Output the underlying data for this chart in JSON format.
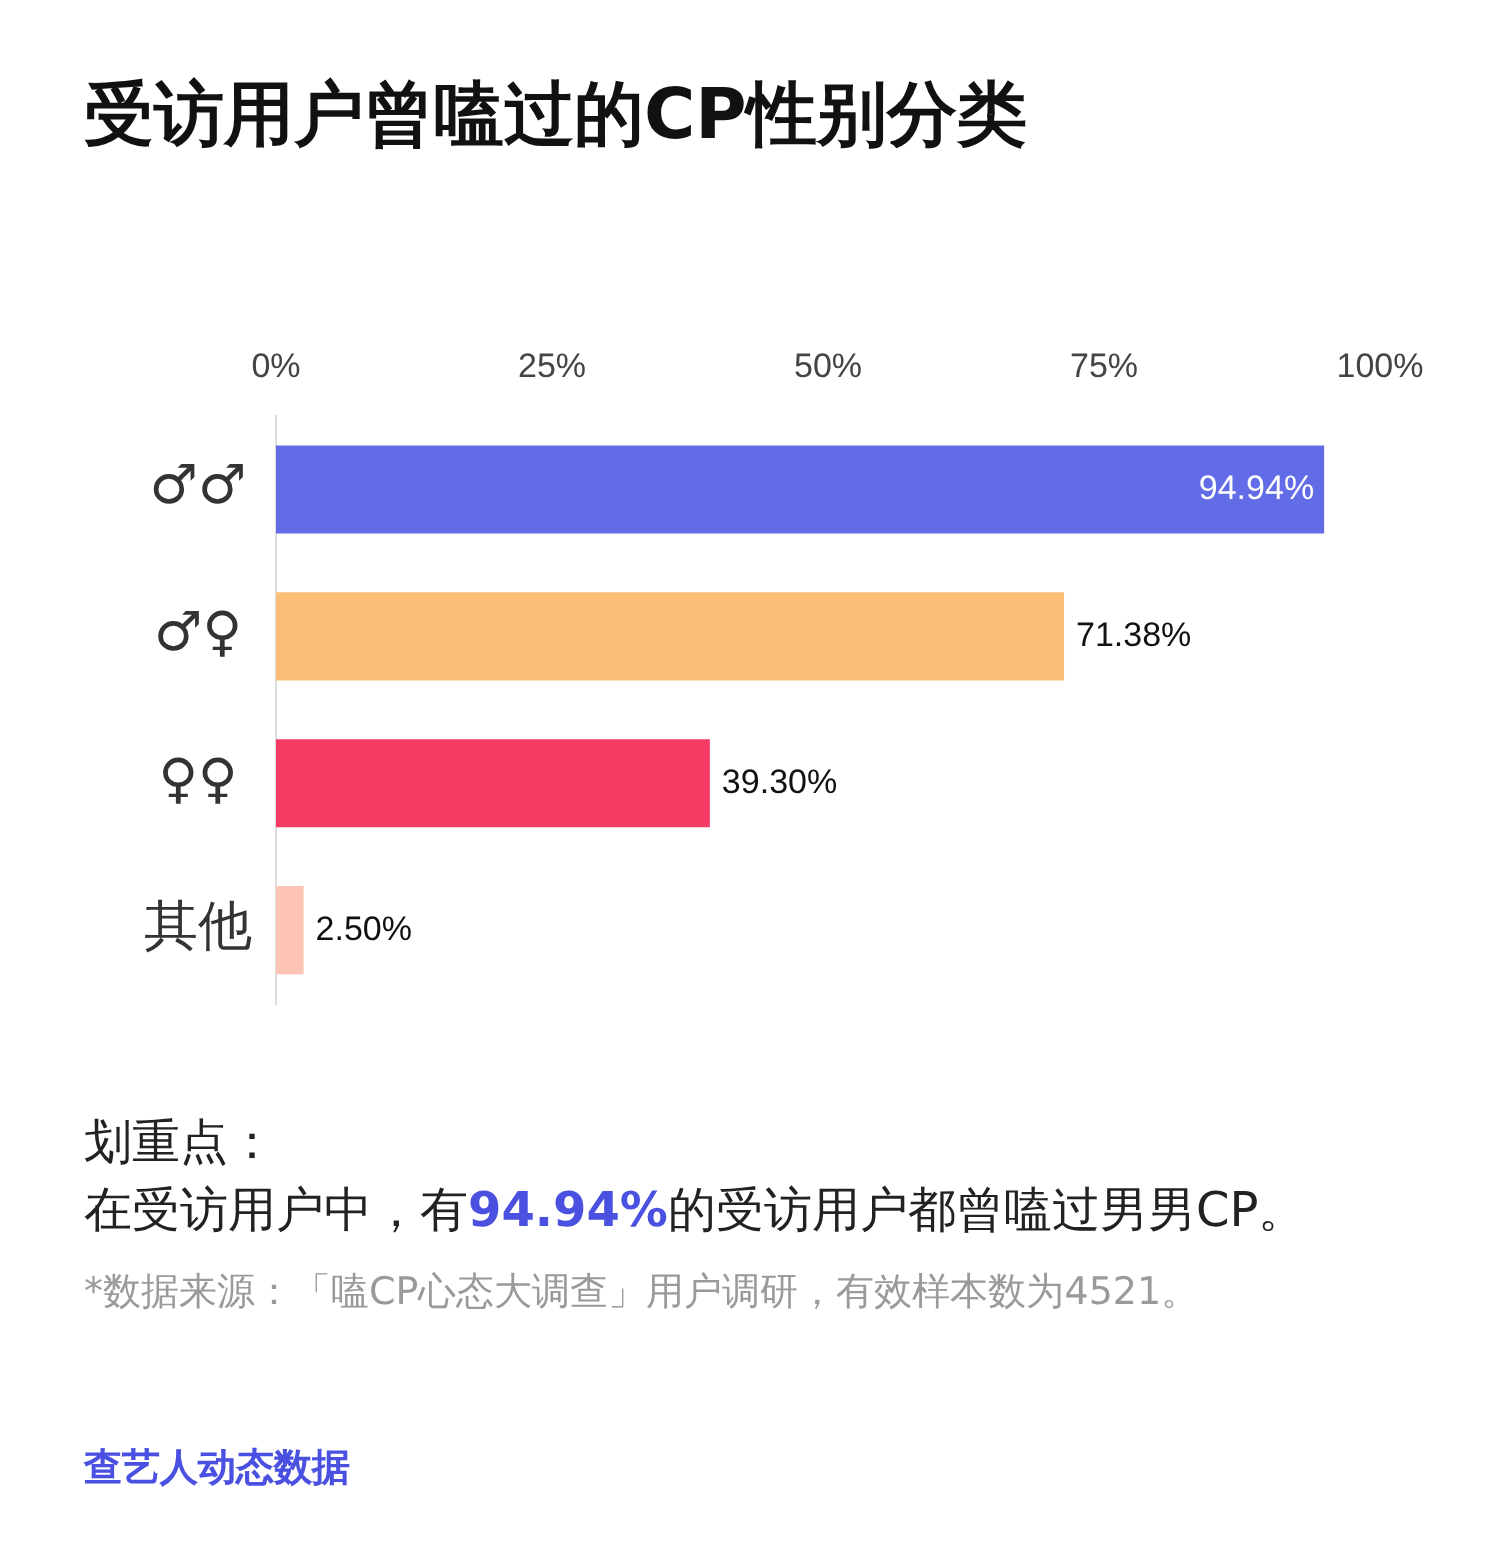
{
  "chart_data": {
    "type": "bar",
    "orientation": "horizontal",
    "title": "受访用户曾嗑过的CP性别分类",
    "categories": [
      "♂♂",
      "♂♀",
      "♀♀",
      "其他"
    ],
    "values": [
      94.94,
      71.38,
      39.3,
      2.5
    ],
    "colors": [
      "#616ce6",
      "#fbbe76",
      "#f53b64",
      "#fdc3b4"
    ],
    "xlim": [
      0,
      100
    ],
    "xticks": [
      {
        "value": 0,
        "label": "0%"
      },
      {
        "value": 25,
        "label": "25%"
      },
      {
        "value": 50,
        "label": "50%"
      },
      {
        "value": 75,
        "label": "75%"
      },
      {
        "value": 100,
        "label": "100%"
      }
    ],
    "value_labels": [
      "94.94%",
      "71.38%",
      "39.30%",
      "2.50%"
    ],
    "grid": false,
    "legend": false,
    "annotations": [
      "划重点：",
      "在受访用户中，有94.94%的受访用户都曾嗑过男男CP。",
      "*数据来源：「嗑CP心态大调查」用户调研，有效样本数为4521。",
      "查艺人动态数据"
    ]
  }
}
